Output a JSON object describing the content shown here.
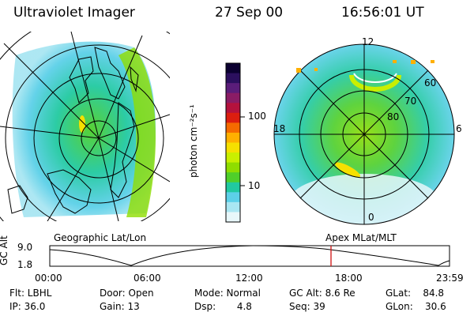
{
  "header": {
    "title": "Ultraviolet Imager",
    "date": "27 Sep 00",
    "time": "16:56:01 UT"
  },
  "left_panel": {
    "caption": "Geographic Lat/Lon"
  },
  "right_panel": {
    "caption": "Apex MLat/MLT",
    "mlt_labels": {
      "top": "12",
      "left": "18",
      "right": "6",
      "bottom": "0"
    },
    "lat_labels": [
      "60",
      "70",
      "80"
    ]
  },
  "colorbar": {
    "label": "photon cm⁻²s⁻¹",
    "ticks": [
      "100",
      "10"
    ],
    "colors": [
      "#0b0030",
      "#2b0f5e",
      "#5b1d7a",
      "#8a1c65",
      "#b4123d",
      "#dc1e0f",
      "#f56a00",
      "#ffb000",
      "#f6e000",
      "#c9ef00",
      "#8fdd00",
      "#4fcf2a",
      "#21c9a0",
      "#5cd0e8",
      "#a9e6f2",
      "#e8f7fa"
    ]
  },
  "timeline": {
    "axis_label_top": "9.0",
    "axis_label_bottom": "1.8",
    "axis_title": "GC Alt",
    "ticks": [
      "00:00",
      "06:00",
      "12:00",
      "18:00",
      "23:59"
    ],
    "marker_time": "16:56"
  },
  "info": {
    "flt": "Flt: LBHL",
    "ip": "IP: 36.0",
    "door": "Door: Open",
    "gain": "Gain: 13",
    "mode": "Mode: Normal",
    "dsp": "Dsp:       4.8",
    "gcalt": "GC Alt: 8.6 Re",
    "seq": "Seq: 39",
    "glat": "GLat:    84.8",
    "glon": "GLon:    30.6"
  }
}
